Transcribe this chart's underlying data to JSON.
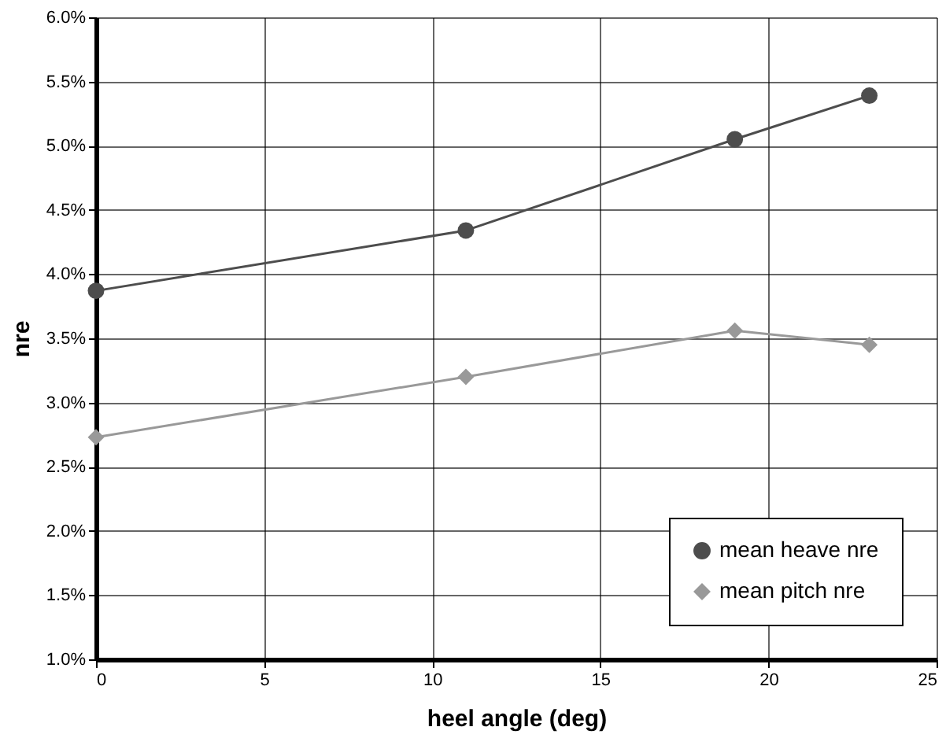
{
  "chart_data": {
    "type": "line",
    "xlabel": "heel angle (deg)",
    "ylabel": "nre",
    "x": [
      0,
      11,
      19,
      23
    ],
    "series": [
      {
        "name": "mean heave nre",
        "color": "#4d4d4d",
        "marker": "circle",
        "values": [
          3.87,
          4.34,
          5.05,
          5.39
        ]
      },
      {
        "name": "mean pitch nre",
        "color": "#999999",
        "marker": "diamond",
        "values": [
          2.73,
          3.2,
          3.56,
          3.45
        ]
      }
    ],
    "xlim": [
      0,
      25
    ],
    "xticks": [
      0,
      5,
      10,
      15,
      20,
      25
    ],
    "ylim": [
      1.0,
      6.0
    ],
    "yticks": [
      {
        "value": 1.0,
        "label": "1.0%"
      },
      {
        "value": 1.5,
        "label": "1.5%"
      },
      {
        "value": 2.0,
        "label": "2.0%"
      },
      {
        "value": 2.5,
        "label": "2.5%"
      },
      {
        "value": 3.0,
        "label": "3.0%"
      },
      {
        "value": 3.5,
        "label": "3.5%"
      },
      {
        "value": 4.0,
        "label": "4.0%"
      },
      {
        "value": 4.5,
        "label": "4.5%"
      },
      {
        "value": 5.0,
        "label": "5.0%"
      },
      {
        "value": 5.5,
        "label": "5.5%"
      },
      {
        "value": 6.0,
        "label": "6.0%"
      }
    ],
    "grid": true,
    "legend": "bottom right",
    "line_style": "solid"
  }
}
